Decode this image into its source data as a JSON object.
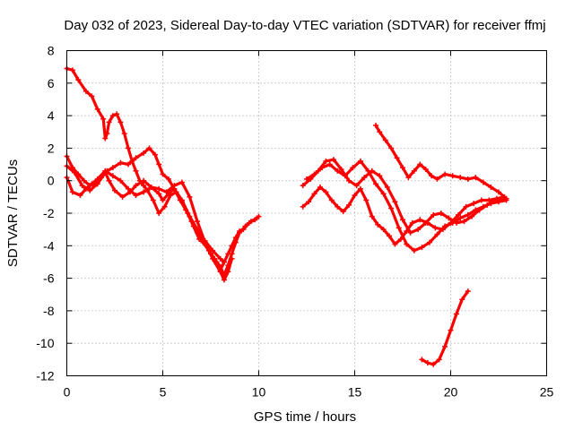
{
  "chart_data": {
    "type": "line",
    "title": "Day 032 of 2023, Sidereal Day-to-day VTEC variation (SDTVAR) for receiver ffmj",
    "xlabel": "GPS time / hours",
    "ylabel": "SDTVAR / TECUs",
    "xlim": [
      0,
      25
    ],
    "ylim": [
      -12,
      8
    ],
    "xticks": [
      0,
      5,
      10,
      15,
      20,
      25
    ],
    "yticks": [
      -12,
      -10,
      -8,
      -6,
      -4,
      -2,
      0,
      2,
      4,
      6,
      8
    ],
    "grid": true,
    "legend": "none",
    "marker": "plus",
    "color": "#ff0000",
    "series": [
      {
        "name": "arc-1",
        "x": [
          0.0,
          0.3,
          0.6,
          1.0,
          1.3,
          1.6,
          1.9,
          2.0,
          2.1,
          2.2,
          2.4,
          2.6,
          2.8,
          3.0,
          3.2,
          3.4,
          3.6,
          3.8,
          4.0,
          4.2,
          4.5,
          4.8,
          5.1,
          5.4,
          5.7,
          6.0,
          6.3,
          6.6,
          6.9,
          7.2,
          7.5,
          7.8,
          8.0,
          8.2,
          8.4,
          8.6,
          8.8,
          9.0,
          9.2,
          9.5,
          9.8,
          10.0
        ],
        "y": [
          6.9,
          6.8,
          6.2,
          5.5,
          5.2,
          4.4,
          3.8,
          2.6,
          2.9,
          3.6,
          4.0,
          4.1,
          3.6,
          2.9,
          2.0,
          1.2,
          0.6,
          0.0,
          -0.3,
          -0.6,
          -1.2,
          -2.0,
          -1.6,
          -0.9,
          -0.7,
          -1.3,
          -2.0,
          -2.8,
          -3.6,
          -3.9,
          -4.5,
          -5.0,
          -5.5,
          -5.0,
          -4.5,
          -4.0,
          -3.5,
          -3.1,
          -3.0,
          -2.6,
          -2.4,
          -2.2
        ]
      },
      {
        "name": "arc-2",
        "x": [
          0.0,
          0.3,
          0.6,
          0.9,
          1.2,
          1.5,
          1.8,
          2.1,
          2.4,
          2.8,
          3.2,
          3.6,
          4.0,
          4.3,
          4.6,
          4.8,
          5.0,
          5.3,
          5.6,
          5.9,
          6.2,
          6.5,
          6.8,
          7.1,
          7.4,
          7.7,
          8.0,
          8.2,
          8.4,
          8.6,
          8.8,
          9.0,
          9.3,
          9.6,
          9.9
        ],
        "y": [
          1.5,
          0.8,
          0.4,
          0.0,
          -0.3,
          -0.2,
          0.2,
          0.6,
          0.8,
          1.1,
          1.0,
          1.4,
          1.7,
          2.0,
          1.6,
          1.0,
          0.4,
          0.1,
          -0.5,
          -1.2,
          -1.8,
          -2.5,
          -3.2,
          -3.8,
          -4.3,
          -4.8,
          -5.3,
          -5.8,
          -5.2,
          -4.5,
          -3.8,
          -3.2,
          -2.8,
          -2.5,
          -2.3
        ]
      },
      {
        "name": "arc-3",
        "x": [
          0.0,
          0.4,
          0.8,
          1.2,
          1.6,
          2.0,
          2.2,
          2.5,
          2.9,
          3.3,
          3.6,
          4.0,
          4.4,
          4.8,
          5.0,
          5.3,
          5.6,
          6.0,
          6.4,
          6.8,
          7.2,
          7.6,
          8.0,
          8.2
        ],
        "y": [
          0.9,
          0.5,
          -0.3,
          -0.6,
          -0.2,
          0.5,
          0.0,
          -0.6,
          -1.0,
          -0.7,
          -0.3,
          0.0,
          -0.4,
          -0.8,
          -1.2,
          -0.8,
          -0.5,
          -1.2,
          -2.2,
          -3.0,
          -3.7,
          -4.3,
          -4.8,
          -5.0
        ]
      },
      {
        "name": "arc-4",
        "x": [
          0.0,
          0.3,
          0.7,
          1.0,
          1.3,
          1.6,
          2.0,
          2.4,
          2.8,
          3.2,
          3.6,
          4.0,
          4.4,
          4.8,
          5.2,
          5.6,
          6.0,
          6.4,
          6.8,
          7.2,
          7.6,
          8.0,
          8.2,
          8.4,
          8.6
        ],
        "y": [
          0.2,
          -0.7,
          -0.9,
          -0.5,
          -0.2,
          0.1,
          0.6,
          0.3,
          0.0,
          -0.5,
          -0.9,
          -0.7,
          -0.4,
          -0.5,
          -0.7,
          -0.3,
          -0.1,
          -1.0,
          -2.5,
          -3.8,
          -4.8,
          -5.6,
          -6.1,
          -5.6,
          -4.8
        ]
      },
      {
        "name": "arc-5",
        "x": [
          12.3,
          12.6,
          12.9,
          13.2,
          13.5,
          13.8,
          14.1,
          14.4,
          14.7,
          15.0,
          15.3,
          15.6,
          15.9,
          16.2,
          16.5,
          16.8,
          17.1,
          17.4,
          17.7,
          18.0,
          18.4,
          18.8,
          19.2,
          19.6,
          20.0,
          20.4,
          20.8,
          21.2,
          21.6,
          22.0,
          22.4,
          22.8
        ],
        "y": [
          -1.6,
          -1.3,
          -0.8,
          -0.4,
          -0.7,
          -1.2,
          -1.6,
          -1.9,
          -1.5,
          -0.9,
          -0.5,
          -1.2,
          -2.2,
          -2.7,
          -3.0,
          -3.4,
          -3.9,
          -3.6,
          -3.1,
          -2.6,
          -2.4,
          -2.6,
          -2.9,
          -3.0,
          -2.6,
          -2.1,
          -1.6,
          -1.4,
          -1.2,
          -1.2,
          -1.1,
          -1.0
        ]
      },
      {
        "name": "arc-6",
        "x": [
          12.3,
          12.7,
          13.1,
          13.5,
          13.9,
          14.3,
          14.7,
          15.1,
          15.5,
          15.9,
          16.3,
          16.7,
          17.1,
          17.5,
          17.9,
          18.3,
          18.7,
          19.1,
          19.5,
          19.9,
          20.3,
          20.7,
          21.1,
          21.5,
          21.9,
          22.3,
          22.7
        ],
        "y": [
          -0.3,
          0.1,
          0.6,
          1.2,
          1.3,
          0.7,
          0.0,
          -0.3,
          0.2,
          0.6,
          0.3,
          -0.4,
          -1.3,
          -2.4,
          -3.2,
          -3.0,
          -2.6,
          -2.1,
          -2.0,
          -2.3,
          -2.6,
          -2.5,
          -2.2,
          -1.8,
          -1.5,
          -1.2,
          -1.1
        ]
      },
      {
        "name": "arc-7",
        "x": [
          12.5,
          12.9,
          13.3,
          13.7,
          14.1,
          14.5,
          14.9,
          15.3,
          15.7,
          16.1,
          16.5,
          16.9,
          17.3,
          17.7,
          18.1,
          18.5,
          18.9,
          19.3,
          19.7,
          20.1,
          20.5,
          20.9,
          21.3,
          21.7,
          22.1,
          22.5,
          22.9
        ],
        "y": [
          0.1,
          0.4,
          0.8,
          1.0,
          0.6,
          0.3,
          0.8,
          1.2,
          0.6,
          -0.2,
          -0.8,
          -1.7,
          -2.9,
          -3.9,
          -4.3,
          -4.1,
          -3.8,
          -3.3,
          -2.8,
          -2.6,
          -2.3,
          -2.1,
          -1.8,
          -1.6,
          -1.4,
          -1.3,
          -1.2
        ]
      },
      {
        "name": "arc-8",
        "x": [
          16.1,
          16.3,
          16.6,
          16.9,
          17.2,
          17.5,
          17.8,
          18.1,
          18.4,
          18.7,
          19.0,
          19.3,
          19.7,
          20.1,
          20.5,
          20.9,
          21.3,
          21.7,
          22.1,
          22.5,
          22.9
        ],
        "y": [
          3.4,
          3.0,
          2.5,
          2.0,
          1.4,
          0.8,
          0.2,
          0.6,
          1.0,
          0.7,
          0.3,
          0.1,
          0.4,
          0.3,
          0.2,
          0.1,
          0.2,
          -0.1,
          -0.4,
          -0.7,
          -1.1
        ]
      },
      {
        "name": "arc-9",
        "x": [
          18.5,
          18.8,
          19.1,
          19.4,
          19.7,
          20.0,
          20.3,
          20.6,
          20.9
        ],
        "y": [
          -11.0,
          -11.2,
          -11.3,
          -11.0,
          -10.2,
          -9.2,
          -8.2,
          -7.3,
          -6.8
        ]
      }
    ]
  }
}
